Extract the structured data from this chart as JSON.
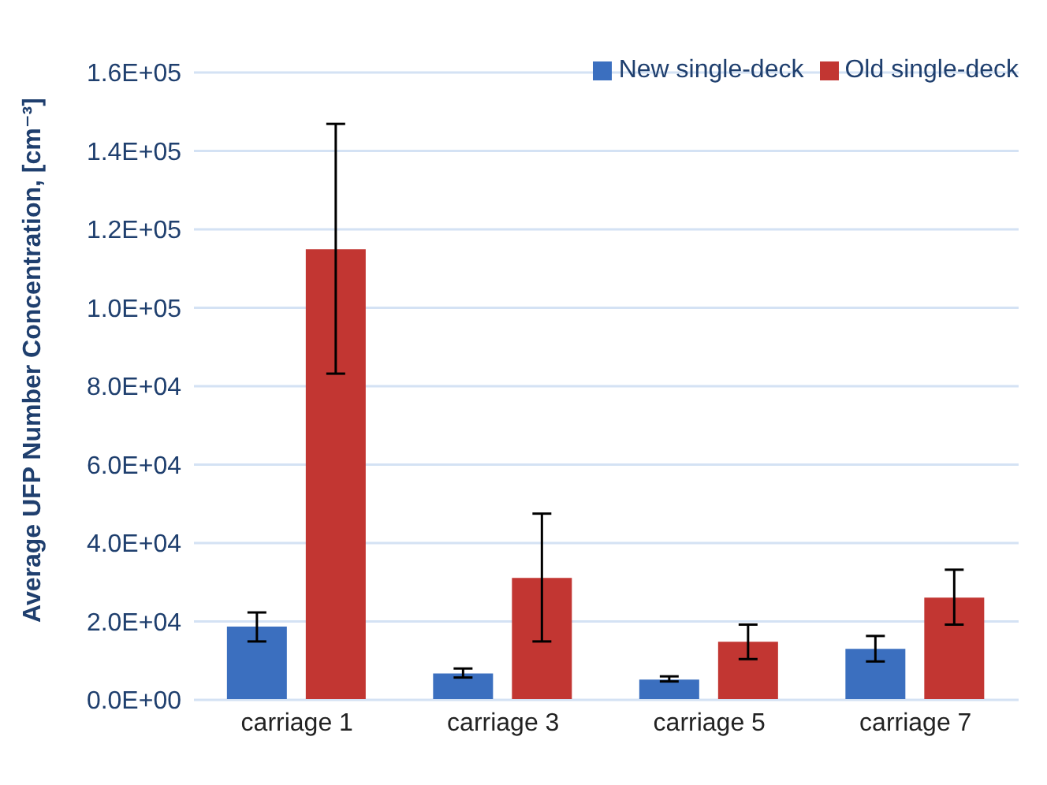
{
  "chart_data": {
    "type": "bar",
    "ylabel": "Average UFP Number Concentration, [cm⁻³]",
    "categories": [
      "carriage 1",
      "carriage 3",
      "carriage 5",
      "carriage 7"
    ],
    "series": [
      {
        "name": "New single-deck",
        "color": "#3b6fbf",
        "values": [
          18700,
          6750,
          5200,
          13000
        ],
        "errors": [
          [
            14900,
            22300
          ],
          [
            5700,
            8000
          ],
          [
            4700,
            6000
          ],
          [
            9800,
            16300
          ]
        ]
      },
      {
        "name": "Old single-deck",
        "color": "#c23632",
        "values": [
          114900,
          31100,
          14800,
          26100
        ],
        "errors": [
          [
            83200,
            146900
          ],
          [
            14900,
            47500
          ],
          [
            10400,
            19200
          ],
          [
            19200,
            33200
          ]
        ]
      }
    ],
    "ylim": [
      0,
      160000
    ],
    "yticks": [
      {
        "value": 0,
        "label": "0.0E+00"
      },
      {
        "value": 20000,
        "label": "2.0E+04"
      },
      {
        "value": 40000,
        "label": "4.0E+04"
      },
      {
        "value": 60000,
        "label": "6.0E+04"
      },
      {
        "value": 80000,
        "label": "8.0E+04"
      },
      {
        "value": 100000,
        "label": "1.0E+05"
      },
      {
        "value": 120000,
        "label": "1.2E+05"
      },
      {
        "value": 140000,
        "label": "1.4E+05"
      },
      {
        "value": 160000,
        "label": "1.6E+05"
      }
    ],
    "grid": "y",
    "legend": "top right"
  }
}
